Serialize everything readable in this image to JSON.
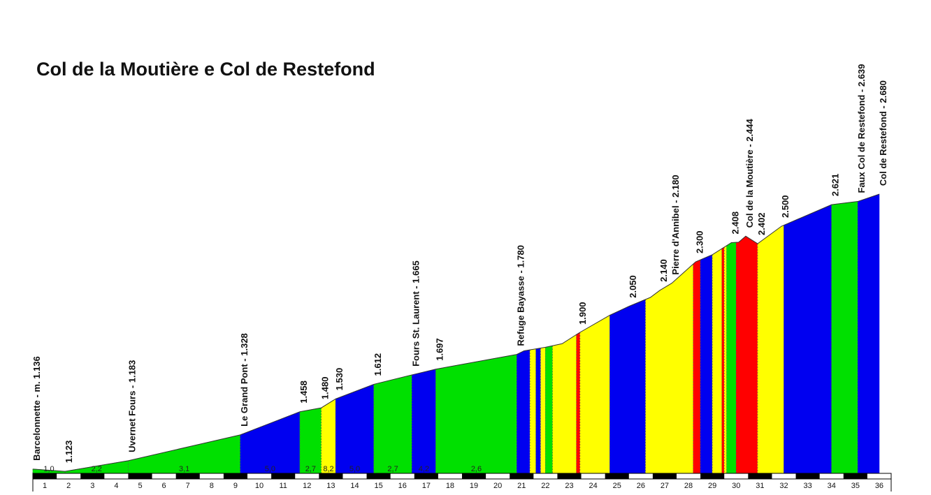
{
  "title": "Col de la Moutière e Col de Restefond",
  "chart_data": {
    "type": "area",
    "title": "Col de la Moutière e Col de Restefond",
    "xlabel": "",
    "ylabel": "",
    "xlim": [
      0,
      36
    ],
    "ylim": [
      1100,
      2700
    ],
    "km_ticks": [
      "1",
      "2",
      "3",
      "4",
      "5",
      "6",
      "7",
      "8",
      "9",
      "10",
      "11",
      "12",
      "13",
      "14",
      "15",
      "16",
      "17",
      "18",
      "19",
      "20",
      "21",
      "22",
      "23",
      "24",
      "25",
      "26",
      "27",
      "28",
      "29",
      "30",
      "31",
      "32",
      "33",
      "34",
      "35",
      "36"
    ],
    "profile": [
      {
        "x": 0.0,
        "y": 1136
      },
      {
        "x": 1.35,
        "y": 1123
      },
      {
        "x": 4.0,
        "y": 1183
      },
      {
        "x": 8.7,
        "y": 1328
      },
      {
        "x": 11.2,
        "y": 1458
      },
      {
        "x": 12.1,
        "y": 1480
      },
      {
        "x": 12.7,
        "y": 1530
      },
      {
        "x": 14.3,
        "y": 1612
      },
      {
        "x": 15.9,
        "y": 1665
      },
      {
        "x": 16.9,
        "y": 1697
      },
      {
        "x": 20.3,
        "y": 1780
      },
      {
        "x": 20.6,
        "y": 1800
      },
      {
        "x": 21.5,
        "y": 1820
      },
      {
        "x": 22.2,
        "y": 1840
      },
      {
        "x": 22.9,
        "y": 1900
      },
      {
        "x": 24.2,
        "y": 2000
      },
      {
        "x": 25.0,
        "y": 2050
      },
      {
        "x": 25.9,
        "y": 2100
      },
      {
        "x": 26.3,
        "y": 2140
      },
      {
        "x": 26.8,
        "y": 2180
      },
      {
        "x": 27.8,
        "y": 2300
      },
      {
        "x": 28.5,
        "y": 2340
      },
      {
        "x": 29.3,
        "y": 2408
      },
      {
        "x": 29.6,
        "y": 2410
      },
      {
        "x": 29.9,
        "y": 2444
      },
      {
        "x": 30.4,
        "y": 2402
      },
      {
        "x": 31.4,
        "y": 2500
      },
      {
        "x": 33.5,
        "y": 2621
      },
      {
        "x": 34.6,
        "y": 2639
      },
      {
        "x": 35.5,
        "y": 2680
      }
    ],
    "segments": [
      {
        "from": 0.0,
        "to": 1.35,
        "color": "#00e000",
        "gradient": "1,0"
      },
      {
        "from": 1.35,
        "to": 4.0,
        "color": "#00e000",
        "gradient": "2,2"
      },
      {
        "from": 4.0,
        "to": 8.7,
        "color": "#00e000",
        "gradient": "3,1"
      },
      {
        "from": 8.7,
        "to": 11.2,
        "color": "#0000f0",
        "gradient": "5,0"
      },
      {
        "from": 11.2,
        "to": 12.1,
        "color": "#00e000",
        "gradient": "2,7"
      },
      {
        "from": 12.1,
        "to": 12.7,
        "color": "#ffff00",
        "gradient": "8,2"
      },
      {
        "from": 12.7,
        "to": 14.3,
        "color": "#0000f0",
        "gradient": "5,0"
      },
      {
        "from": 14.3,
        "to": 15.9,
        "color": "#00e000",
        "gradient": "2,7"
      },
      {
        "from": 15.9,
        "to": 16.9,
        "color": "#0000f0",
        "gradient": "4,2"
      },
      {
        "from": 16.9,
        "to": 20.3,
        "color": "#00e000",
        "gradient": "2,6"
      },
      {
        "from": 20.3,
        "to": 20.85,
        "color": "#0000f0",
        "gradient": ""
      },
      {
        "from": 20.85,
        "to": 21.1,
        "color": "#ffff00",
        "gradient": ""
      },
      {
        "from": 21.1,
        "to": 21.3,
        "color": "#0000f0",
        "gradient": ""
      },
      {
        "from": 21.3,
        "to": 21.5,
        "color": "#ffff00",
        "gradient": ""
      },
      {
        "from": 21.5,
        "to": 21.8,
        "color": "#00e000",
        "gradient": ""
      },
      {
        "from": 21.8,
        "to": 22.8,
        "color": "#ffff00",
        "gradient": ""
      },
      {
        "from": 22.8,
        "to": 22.95,
        "color": "#ff0000",
        "gradient": ""
      },
      {
        "from": 22.95,
        "to": 24.2,
        "color": "#ffff00",
        "gradient": ""
      },
      {
        "from": 24.2,
        "to": 25.7,
        "color": "#0000f0",
        "gradient": ""
      },
      {
        "from": 25.7,
        "to": 27.7,
        "color": "#ffff00",
        "gradient": ""
      },
      {
        "from": 27.7,
        "to": 28.0,
        "color": "#ff0000",
        "gradient": ""
      },
      {
        "from": 28.0,
        "to": 28.5,
        "color": "#0000f0",
        "gradient": ""
      },
      {
        "from": 28.5,
        "to": 28.9,
        "color": "#ffff00",
        "gradient": ""
      },
      {
        "from": 28.9,
        "to": 29.0,
        "color": "#ff0000",
        "gradient": ""
      },
      {
        "from": 29.0,
        "to": 29.1,
        "color": "#ffff00",
        "gradient": ""
      },
      {
        "from": 29.1,
        "to": 29.5,
        "color": "#00e000",
        "gradient": ""
      },
      {
        "from": 29.5,
        "to": 30.4,
        "color": "#ff0000",
        "gradient": ""
      },
      {
        "from": 30.4,
        "to": 31.5,
        "color": "#ffff00",
        "gradient": ""
      },
      {
        "from": 31.5,
        "to": 33.5,
        "color": "#0000f0",
        "gradient": ""
      },
      {
        "from": 33.5,
        "to": 34.6,
        "color": "#00e000",
        "gradient": ""
      },
      {
        "from": 34.6,
        "to": 35.5,
        "color": "#0000f0",
        "gradient": ""
      }
    ],
    "waypoints": [
      {
        "x": 0.0,
        "y": 1136,
        "label": "Barcelonnette - m. 1.136"
      },
      {
        "x": 1.35,
        "y": 1123,
        "label": "1.123"
      },
      {
        "x": 4.0,
        "y": 1183,
        "label": "Uvernet Fours - 1.183"
      },
      {
        "x": 8.7,
        "y": 1328,
        "label": "Le Grand Pont - 1.328"
      },
      {
        "x": 11.2,
        "y": 1458,
        "label": "1.458"
      },
      {
        "x": 12.1,
        "y": 1480,
        "label": "1.480"
      },
      {
        "x": 12.7,
        "y": 1530,
        "label": "1.530"
      },
      {
        "x": 14.3,
        "y": 1612,
        "label": "1.612"
      },
      {
        "x": 15.9,
        "y": 1665,
        "label": "Fours St. Laurent - 1.665"
      },
      {
        "x": 16.9,
        "y": 1697,
        "label": "1.697"
      },
      {
        "x": 20.3,
        "y": 1780,
        "label": "Refuge Bayasse - 1.780"
      },
      {
        "x": 22.9,
        "y": 1900,
        "label": "1.900"
      },
      {
        "x": 25.0,
        "y": 2050,
        "label": "2.050"
      },
      {
        "x": 26.3,
        "y": 2140,
        "label": "2.140"
      },
      {
        "x": 26.8,
        "y": 2180,
        "label": "Pierre d'Annibel - 2.180"
      },
      {
        "x": 27.8,
        "y": 2300,
        "label": "2.300"
      },
      {
        "x": 29.3,
        "y": 2408,
        "label": "2.408"
      },
      {
        "x": 29.9,
        "y": 2444,
        "label": "Col de la Moutière - 2.444"
      },
      {
        "x": 30.4,
        "y": 2402,
        "label": "2.402"
      },
      {
        "x": 31.4,
        "y": 2500,
        "label": "2.500"
      },
      {
        "x": 33.5,
        "y": 2621,
        "label": "2.621"
      },
      {
        "x": 34.6,
        "y": 2639,
        "label": "Faux Col de Restefond - 2.639"
      },
      {
        "x": 35.5,
        "y": 2680,
        "label": "Col de Restefond - 2.680"
      }
    ]
  }
}
